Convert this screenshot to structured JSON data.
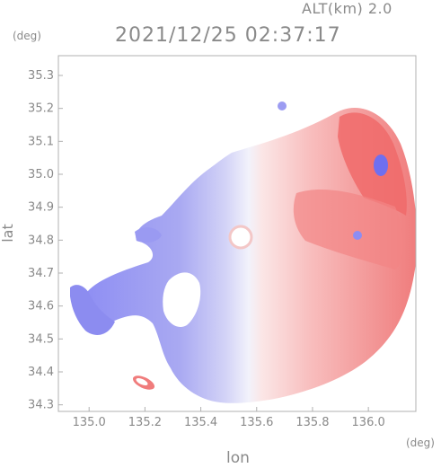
{
  "header": {
    "altitude": "ALT(km) 2.0",
    "timestamp": "2021/12/25 02:37:17"
  },
  "axes": {
    "y_unit": "(deg)",
    "x_unit": "(deg)",
    "y_label": "lat",
    "x_label": "lon",
    "y_ticks": [
      "35.3",
      "35.2",
      "35.1",
      "35.0",
      "34.9",
      "34.8",
      "34.7",
      "34.6",
      "34.5",
      "34.4",
      "34.3"
    ],
    "x_ticks": [
      "135.0",
      "135.2",
      "135.4",
      "135.6",
      "135.8",
      "136.0"
    ],
    "lat_range": [
      34.28,
      35.36
    ],
    "lon_range": [
      134.89,
      136.17
    ],
    "radar_center": {
      "lon": 135.52,
      "lat": 34.82
    }
  },
  "colors": {
    "approaching": "#7b7bf0",
    "receding": "#f06a6a",
    "frame": "#b0b0b0",
    "text": "#8a8a8a"
  }
}
